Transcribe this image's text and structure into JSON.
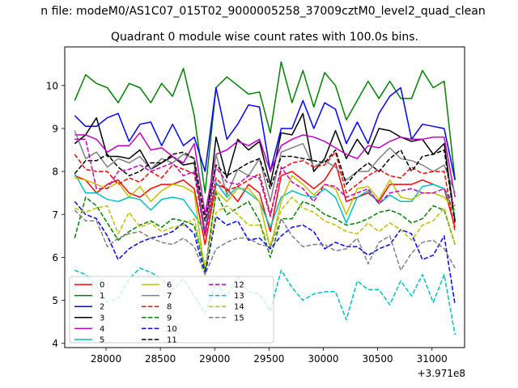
{
  "figure": {
    "suptitle": "n file: modeM0/AS1C07_015T02_9000005258_37009cztM0_level2_quad_clean",
    "offset_label": "+3.971e8"
  },
  "chart_data": {
    "type": "line",
    "title": "Quadrant 0 module wise count rates with 100.0s bins.",
    "xlabel": "",
    "ylabel": "",
    "x_offset": 397100000,
    "xlim": [
      27620,
      31300
    ],
    "ylim": [
      3.9,
      10.9
    ],
    "xticks": [
      28000,
      28500,
      29000,
      29500,
      30000,
      30500,
      31000
    ],
    "yticks": [
      4,
      5,
      6,
      7,
      8,
      9,
      10
    ],
    "grid": false,
    "legend": {
      "placement": "lower-left",
      "columns": 3
    },
    "x": [
      27712,
      27812,
      27912,
      28012,
      28112,
      28212,
      28312,
      28412,
      28512,
      28612,
      28712,
      28812,
      28912,
      29012,
      29112,
      29212,
      29312,
      29412,
      29512,
      29612,
      29712,
      29812,
      29912,
      30012,
      30112,
      30212,
      30312,
      30412,
      30512,
      30612,
      30712,
      30812,
      30912,
      31012,
      31112,
      31212
    ],
    "series": [
      {
        "name": "0",
        "color": "#ff0000",
        "dash": "solid",
        "values": [
          7.9,
          7.8,
          7.5,
          7.7,
          7.8,
          7.5,
          7.4,
          7.6,
          7.7,
          7.7,
          7.8,
          7.6,
          6.3,
          7.7,
          7.6,
          7.3,
          7.7,
          7.5,
          6.6,
          7.9,
          8.0,
          7.8,
          7.6,
          7.8,
          8.2,
          7.3,
          7.4,
          7.5,
          7.3,
          7.7,
          7.7,
          7.7,
          7.8,
          7.7,
          7.6,
          6.7
        ]
      },
      {
        "name": "1",
        "color": "#008000",
        "dash": "solid",
        "values": [
          9.65,
          10.25,
          10.05,
          9.95,
          9.6,
          10.05,
          9.95,
          9.6,
          10.05,
          9.75,
          10.4,
          9.3,
          7.5,
          9.95,
          10.2,
          10.0,
          9.8,
          9.85,
          8.9,
          10.55,
          9.6,
          10.35,
          9.5,
          10.3,
          10.0,
          9.2,
          9.65,
          10.1,
          9.7,
          10.1,
          9.7,
          9.7,
          10.35,
          9.95,
          10.1,
          7.8
        ]
      },
      {
        "name": "2",
        "color": "#0000ff",
        "dash": "solid",
        "values": [
          9.3,
          9.05,
          9.05,
          9.25,
          9.35,
          8.7,
          9.1,
          9.15,
          8.6,
          9.1,
          8.6,
          8.8,
          8.0,
          9.95,
          8.75,
          9.1,
          9.55,
          9.5,
          8.0,
          9.0,
          9.0,
          9.65,
          9.0,
          9.6,
          9.45,
          8.65,
          9.15,
          8.65,
          9.35,
          9.75,
          9.95,
          8.75,
          9.1,
          9.05,
          9.0,
          7.8
        ]
      },
      {
        "name": "3",
        "color": "#000000",
        "dash": "solid",
        "values": [
          8.65,
          8.85,
          9.25,
          8.35,
          8.35,
          8.3,
          8.5,
          8.05,
          8.2,
          8.35,
          8.15,
          8.2,
          6.5,
          8.8,
          7.85,
          8.75,
          8.5,
          8.7,
          7.7,
          8.9,
          8.85,
          9.35,
          8.0,
          8.3,
          8.95,
          8.3,
          8.75,
          8.4,
          9.0,
          8.95,
          8.8,
          8.7,
          8.75,
          8.4,
          8.65,
          6.85
        ]
      },
      {
        "name": "4",
        "color": "#bf00bf",
        "dash": "solid",
        "values": [
          8.85,
          8.85,
          8.75,
          8.45,
          8.6,
          8.6,
          8.9,
          8.5,
          8.55,
          8.35,
          8.2,
          8.65,
          7.0,
          8.4,
          8.5,
          8.7,
          8.6,
          8.75,
          8.0,
          8.6,
          8.75,
          8.85,
          8.8,
          8.7,
          8.55,
          8.4,
          8.3,
          8.6,
          8.55,
          8.7,
          8.8,
          8.75,
          8.75,
          8.8,
          8.8,
          7.4
        ]
      },
      {
        "name": "5",
        "color": "#00bfbf",
        "dash": "solid",
        "values": [
          7.95,
          7.5,
          7.5,
          7.35,
          7.3,
          7.4,
          7.35,
          7.1,
          7.35,
          7.4,
          7.35,
          7.0,
          6.6,
          7.75,
          7.4,
          7.65,
          7.5,
          7.3,
          6.7,
          7.4,
          7.55,
          7.45,
          7.4,
          7.6,
          7.4,
          6.8,
          7.4,
          7.55,
          7.25,
          7.45,
          7.3,
          7.3,
          7.65,
          7.7,
          7.6,
          7.0
        ]
      },
      {
        "name": "6",
        "color": "#bfbf00",
        "dash": "solid",
        "values": [
          7.85,
          7.8,
          7.7,
          7.6,
          7.75,
          7.4,
          7.65,
          7.3,
          7.55,
          7.7,
          7.65,
          7.5,
          5.6,
          7.55,
          7.3,
          7.6,
          7.6,
          7.3,
          6.2,
          7.3,
          7.9,
          7.7,
          7.45,
          7.7,
          7.6,
          7.0,
          7.6,
          7.65,
          7.35,
          7.8,
          7.4,
          7.35,
          7.5,
          7.5,
          7.4,
          7.1
        ]
      },
      {
        "name": "7",
        "color": "#808080",
        "dash": "solid",
        "values": [
          8.95,
          8.3,
          8.45,
          8.1,
          8.3,
          8.2,
          8.35,
          8.05,
          8.3,
          8.2,
          8.4,
          8.3,
          6.6,
          8.4,
          7.45,
          8.05,
          7.9,
          8.3,
          7.3,
          8.45,
          8.55,
          8.65,
          8.1,
          8.25,
          8.1,
          7.8,
          8.0,
          8.0,
          8.3,
          8.55,
          8.3,
          8.25,
          8.15,
          8.0,
          8.15,
          7.5
        ]
      },
      {
        "name": "8",
        "color": "#ff0000",
        "dash": "dashed",
        "values": [
          8.4,
          8.05,
          8.0,
          8.0,
          7.7,
          7.85,
          7.75,
          8.0,
          7.85,
          8.15,
          8.05,
          7.95,
          6.5,
          7.85,
          7.55,
          7.65,
          7.8,
          7.95,
          7.0,
          8.05,
          8.2,
          8.25,
          8.1,
          8.15,
          8.45,
          7.5,
          7.7,
          7.9,
          8.05,
          7.9,
          7.85,
          8.1,
          7.95,
          8.0,
          8.0,
          6.6
        ]
      },
      {
        "name": "9",
        "color": "#008000",
        "dash": "dashed",
        "values": [
          6.45,
          7.4,
          7.2,
          6.8,
          6.4,
          6.6,
          6.75,
          6.85,
          6.7,
          6.9,
          6.85,
          6.75,
          5.7,
          7.5,
          7.0,
          7.15,
          7.3,
          6.85,
          6.0,
          6.9,
          6.9,
          7.3,
          7.2,
          7.0,
          6.9,
          6.75,
          6.8,
          6.9,
          7.05,
          7.1,
          7.0,
          6.8,
          6.9,
          7.2,
          7.1,
          6.3
        ]
      },
      {
        "name": "10",
        "color": "#0000ff",
        "dash": "dashed",
        "values": [
          7.3,
          7.0,
          6.9,
          6.5,
          5.95,
          6.2,
          6.35,
          6.45,
          6.5,
          6.6,
          6.8,
          6.55,
          5.6,
          6.95,
          6.75,
          6.85,
          6.4,
          6.45,
          6.2,
          6.5,
          6.7,
          6.75,
          6.6,
          6.2,
          6.35,
          6.25,
          6.25,
          6.05,
          6.2,
          6.3,
          6.65,
          6.55,
          5.95,
          6.05,
          6.5,
          4.9
        ]
      },
      {
        "name": "11",
        "color": "#000000",
        "dash": "dashed",
        "values": [
          7.95,
          8.25,
          8.25,
          8.4,
          8.1,
          7.9,
          8.0,
          8.2,
          8.2,
          8.4,
          8.45,
          8.3,
          6.85,
          8.15,
          7.9,
          8.05,
          8.2,
          8.3,
          7.6,
          8.35,
          8.35,
          8.3,
          8.25,
          8.2,
          8.5,
          7.7,
          8.0,
          8.2,
          8.0,
          8.3,
          8.5,
          8.0,
          8.35,
          8.4,
          8.5,
          6.8
        ]
      },
      {
        "name": "12",
        "color": "#bf00bf",
        "dash": "dashed",
        "values": [
          8.75,
          8.75,
          7.6,
          7.6,
          8.0,
          8.05,
          8.15,
          8.0,
          8.1,
          8.2,
          7.9,
          8.0,
          6.55,
          8.1,
          7.75,
          7.7,
          7.9,
          7.85,
          6.95,
          8.1,
          7.75,
          7.6,
          7.3,
          7.7,
          7.65,
          7.4,
          7.5,
          7.6,
          7.25,
          7.5,
          7.55,
          7.6,
          7.5,
          7.5,
          7.6,
          7.2
        ]
      },
      {
        "name": "13",
        "color": "#00bfbf",
        "dash": "dashed",
        "values": [
          5.7,
          5.6,
          5.35,
          4.95,
          5.05,
          5.5,
          5.75,
          5.65,
          5.5,
          5.25,
          5.5,
          5.1,
          4.7,
          5.4,
          5.1,
          5.55,
          5.2,
          5.15,
          4.75,
          5.7,
          5.3,
          5.0,
          5.15,
          5.2,
          5.2,
          4.55,
          5.45,
          5.25,
          5.25,
          4.9,
          5.45,
          5.1,
          5.6,
          4.95,
          5.6,
          4.2
        ]
      },
      {
        "name": "14",
        "color": "#bfbf00",
        "dash": "dashed",
        "values": [
          7.15,
          7.05,
          7.15,
          7.2,
          6.55,
          7.05,
          6.7,
          6.8,
          6.6,
          6.7,
          6.75,
          6.9,
          5.8,
          7.05,
          7.2,
          7.0,
          6.75,
          6.75,
          6.3,
          7.1,
          7.4,
          7.15,
          7.05,
          6.85,
          6.75,
          6.6,
          6.55,
          6.8,
          6.6,
          6.8,
          6.65,
          6.4,
          6.75,
          6.85,
          7.15,
          6.3
        ]
      },
      {
        "name": "15",
        "color": "#808080",
        "dash": "dashed",
        "values": [
          7.1,
          6.85,
          6.85,
          6.25,
          6.45,
          6.55,
          6.6,
          6.45,
          6.35,
          6.3,
          6.45,
          6.25,
          5.6,
          6.2,
          6.35,
          6.45,
          6.45,
          6.3,
          6.25,
          6.9,
          6.5,
          6.25,
          6.3,
          6.3,
          6.15,
          6.2,
          6.45,
          5.85,
          6.35,
          6.5,
          5.7,
          6.1,
          6.35,
          6.4,
          6.2,
          5.75
        ]
      }
    ]
  }
}
